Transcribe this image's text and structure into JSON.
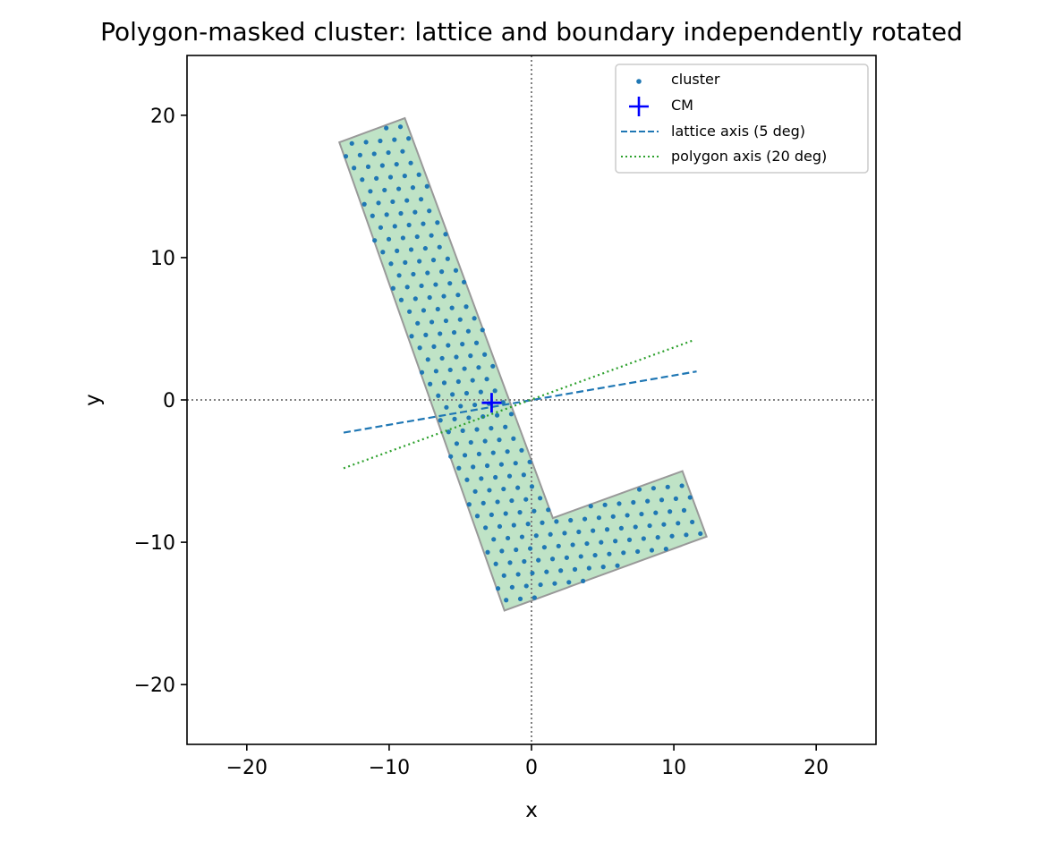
{
  "chart_data": {
    "type": "scatter",
    "title": "Polygon-masked cluster: lattice and boundary independently rotated",
    "xlabel": "x",
    "ylabel": "y",
    "xlim": [
      -24.2,
      24.2
    ],
    "ylim": [
      -24.2,
      24.2
    ],
    "xticks": [
      -20,
      -10,
      0,
      10,
      20
    ],
    "yticks": [
      -20,
      -10,
      0,
      10,
      20
    ],
    "tick_labels": {
      "x": [
        "−20",
        "−10",
        "0",
        "10",
        "20"
      ],
      "y": [
        "−20",
        "−10",
        "0",
        "10",
        "20"
      ]
    },
    "reference_lines": {
      "x": 0,
      "y": 0,
      "style": "dotted",
      "color": "#808080"
    },
    "polygon": {
      "vertices": [
        [
          -13.5,
          18.1
        ],
        [
          -8.9,
          19.8
        ],
        [
          1.5,
          -8.3
        ],
        [
          10.6,
          -5.0
        ],
        [
          12.3,
          -9.6
        ],
        [
          -1.9,
          -14.8
        ]
      ],
      "fill": "#bfe3c6",
      "edge": "#999999"
    },
    "lattice": {
      "spacing": 1.0,
      "angle_deg": 5,
      "grid_x": [
        -16,
        16
      ],
      "grid_y": [
        -24,
        24
      ]
    },
    "cluster": {
      "name": "cluster",
      "color": "#1f77b4",
      "marker_radius": 2.6
    },
    "cm": {
      "name": "CM",
      "x": -2.8,
      "y": -0.2,
      "color": "#0000ff"
    },
    "lines": [
      {
        "name": "lattice axis (5 deg)",
        "x": [
          -13.2,
          11.6
        ],
        "y": [
          -2.3,
          2.0
        ],
        "color": "#1f77b4",
        "style": "dashed"
      },
      {
        "name": "polygon axis (20 deg)",
        "x": [
          -13.2,
          11.4
        ],
        "y": [
          -4.8,
          4.2
        ],
        "color": "#2ca02c",
        "style": "dotted"
      }
    ],
    "legend": {
      "location": "upper-right",
      "entries": [
        "cluster",
        "CM",
        "lattice axis (5 deg)",
        "polygon axis (20 deg)"
      ]
    },
    "grid": false
  }
}
